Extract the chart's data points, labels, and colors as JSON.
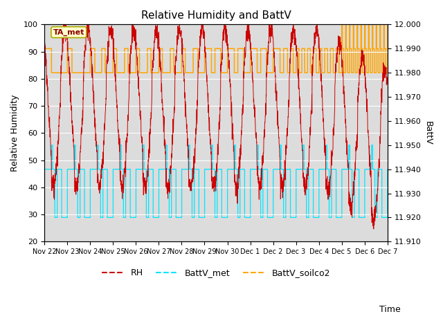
{
  "title": "Relative Humidity and BattV",
  "ylabel_left": "Relative Humidity",
  "ylabel_right": "BattV",
  "xlabel": "Time",
  "annotation_text": "TA_met",
  "ylim_left": [
    20,
    100
  ],
  "ylim_right": [
    11.91,
    12.0
  ],
  "background_color": "#dcdcdc",
  "rh_color": "#cc0000",
  "battv_met_color": "#00e5ff",
  "battv_soilco2_color": "#ffa500",
  "annotation_box_color": "#ffffcc",
  "annotation_border_color": "#aaaa00",
  "num_days": 15,
  "points_per_day": 144,
  "tick_labels": [
    "Nov 22",
    "Nov 23",
    "Nov 24",
    "Nov 25",
    "Nov 26",
    "Nov 27",
    "Nov 28",
    "Nov 29",
    "Nov 30",
    "Dec 1",
    "Dec 2",
    "Dec 3",
    "Dec 4",
    "Dec 5",
    "Dec 6",
    "Dec 7"
  ],
  "yticks_left": [
    20,
    30,
    40,
    50,
    60,
    70,
    80,
    90,
    100
  ],
  "yticks_right": [
    11.91,
    11.92,
    11.93,
    11.94,
    11.95,
    11.96,
    11.97,
    11.98,
    11.99,
    12.0
  ]
}
